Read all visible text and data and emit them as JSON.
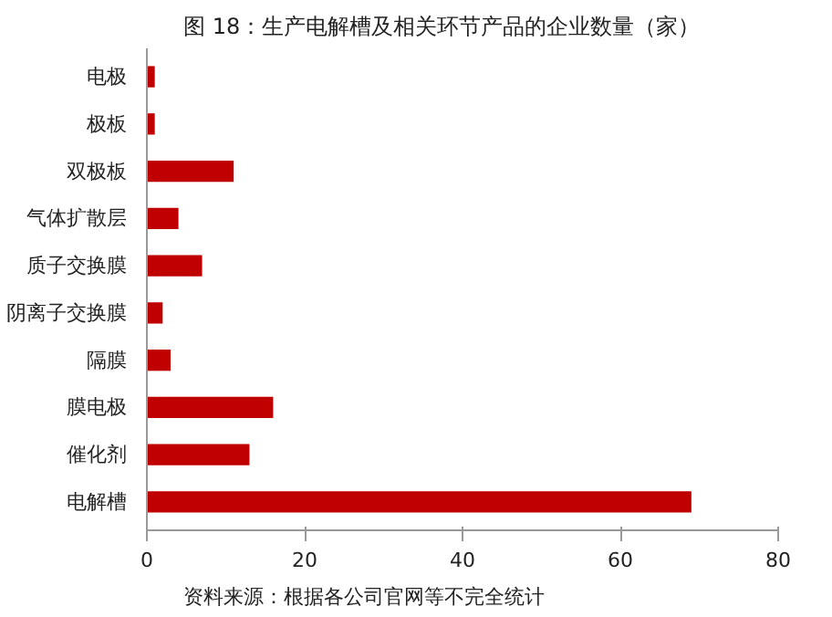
{
  "chart_data": {
    "type": "bar",
    "orientation": "horizontal",
    "title": "图 18：生产电解槽及相关环节产品的企业数量（家）",
    "categories": [
      "电极",
      "极板",
      "双极板",
      "气体扩散层",
      "质子交换膜",
      "阴离子交换膜",
      "隔膜",
      "膜电极",
      "催化剂",
      "电解槽"
    ],
    "values": [
      1,
      1,
      11,
      4,
      7,
      2,
      3,
      16,
      13,
      69
    ],
    "color": "#c00000",
    "xlim": [
      0,
      80
    ],
    "xticks": [
      0,
      20,
      40,
      60,
      80
    ],
    "grid": false,
    "annotations": [
      "资料来源：根据各公司官网等不完全统计"
    ]
  }
}
